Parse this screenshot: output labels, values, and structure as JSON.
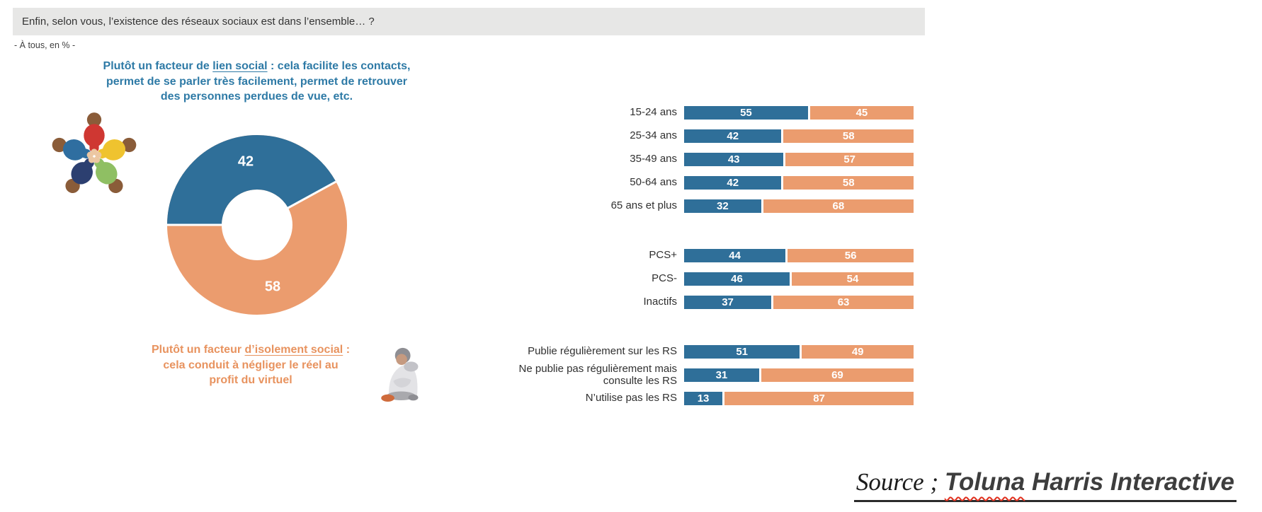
{
  "header": {
    "question": "Enfin, selon vous, l’existence des réseaux sociaux est dans l’ensemble… ?",
    "audience_note": "- À tous, en % -"
  },
  "colors": {
    "bar_blue": "#2f6f99",
    "bar_orange": "#eb9c6e",
    "text_blue": "#2e7aa6",
    "text_orange": "#e8935f",
    "question_bg": "#e7e7e6"
  },
  "icons": {
    "teamwork": "people-circle-icon",
    "isolation": "sad-person-icon"
  },
  "legend": {
    "social_link": {
      "prefix": "Plutôt un facteur de ",
      "highlight": "lien social",
      "suffix": " : cela facilite les contacts, permet de se parler très facilement, permet de retrouver des personnes perdues de vue, etc."
    },
    "isolation": {
      "prefix": "Plutôt un facteur ",
      "highlight": "d’isolement social",
      "suffix": " : cela conduit à négliger le réel au profit du virtuel"
    }
  },
  "chart_data": [
    {
      "type": "pie",
      "donut": true,
      "labels": [
        "Plutôt un facteur de lien social",
        "Plutôt un facteur d’isolement social"
      ],
      "values": [
        42,
        58
      ],
      "colors": [
        "#2f6f99",
        "#eb9c6e"
      ],
      "start": "blue segment starts at 9 o'clock, clockwise",
      "data_labels": "white bold, inside ring"
    },
    {
      "type": "bar",
      "stacked": true,
      "orientation": "horizontal",
      "xlim": [
        0,
        100
      ],
      "series_names": [
        "Plutôt un facteur de lien social",
        "Plutôt un facteur d’isolement social"
      ],
      "series_colors": [
        "#2f6f99",
        "#eb9c6e"
      ],
      "groups": [
        {
          "rows": [
            {
              "label": "15-24 ans",
              "values": [
                55,
                45
              ]
            },
            {
              "label": "25-34 ans",
              "values": [
                42,
                58
              ]
            },
            {
              "label": "35-49 ans",
              "values": [
                43,
                57
              ]
            },
            {
              "label": "50-64 ans",
              "values": [
                42,
                58
              ]
            },
            {
              "label": "65 ans et plus",
              "values": [
                32,
                68
              ]
            }
          ]
        },
        {
          "rows": [
            {
              "label": "PCS+",
              "values": [
                44,
                56
              ]
            },
            {
              "label": "PCS-",
              "values": [
                46,
                54
              ]
            },
            {
              "label": "Inactifs",
              "values": [
                37,
                63
              ]
            }
          ]
        },
        {
          "rows": [
            {
              "label": "Publie régulièrement sur les RS",
              "values": [
                51,
                49
              ]
            },
            {
              "label": "Ne publie pas régulièrement mais consulte les RS",
              "values": [
                31,
                69
              ]
            },
            {
              "label": "N’utilise pas les RS",
              "values": [
                13,
                87
              ]
            }
          ]
        }
      ]
    }
  ],
  "source": {
    "prefix": "Source ; ",
    "brand_first_word": "Toluna",
    "brand_rest": " Harris Interactive"
  }
}
